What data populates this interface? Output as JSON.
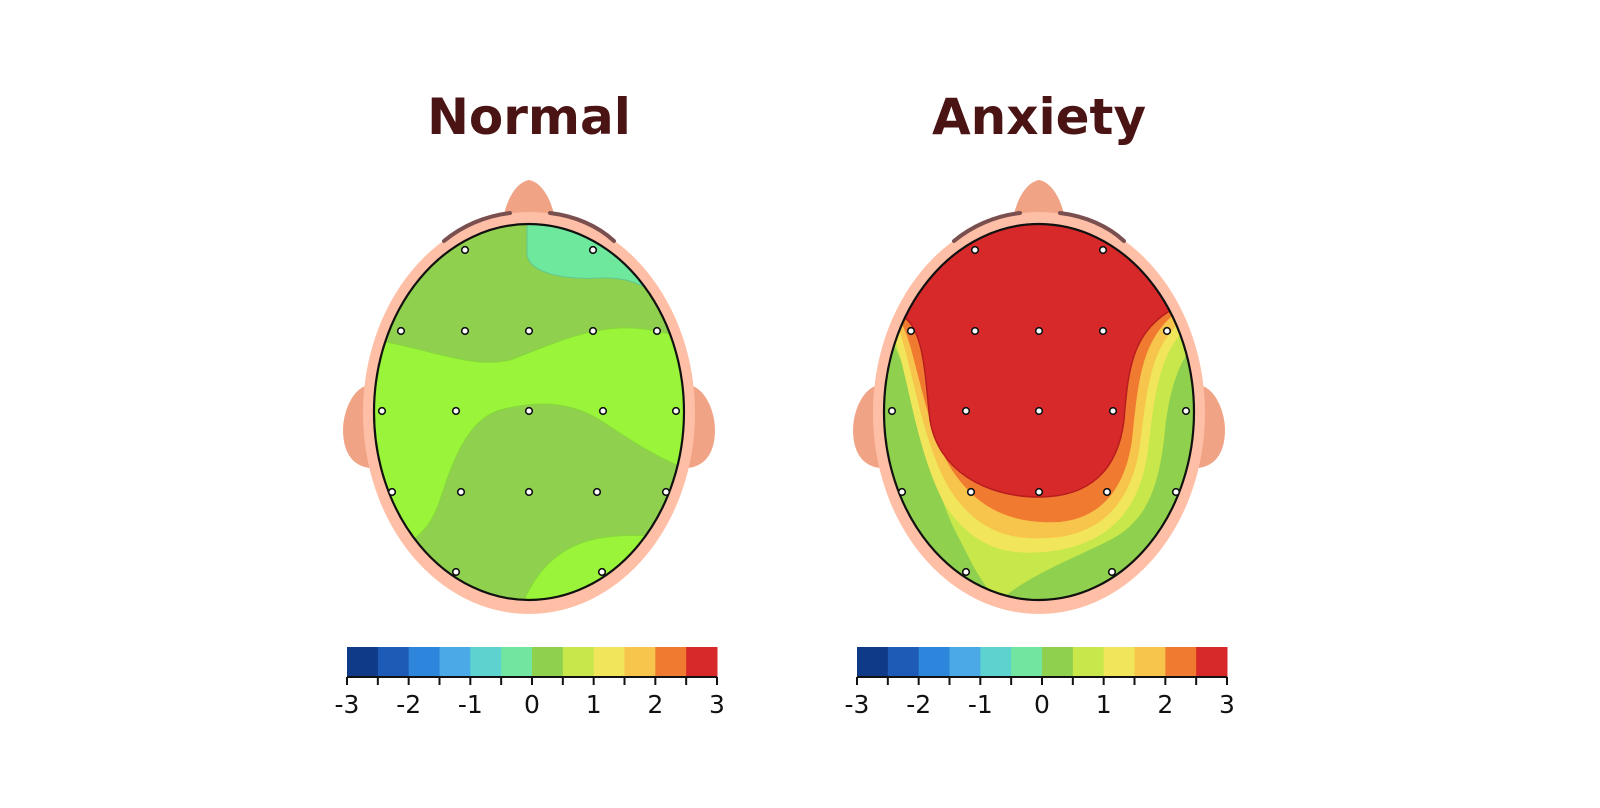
{
  "panels": [
    {
      "title": "Normal",
      "pattern": "normal"
    },
    {
      "title": "Anxiety",
      "pattern": "anxiety"
    }
  ],
  "colorbar": {
    "min": -3,
    "max": 3,
    "tick_labels": [
      "-3",
      "-2",
      "-1",
      "0",
      "1",
      "2",
      "3"
    ],
    "colors": [
      "#0e3a88",
      "#1e5bb6",
      "#2e85dc",
      "#4aa9e6",
      "#5dd3d0",
      "#72e6a0",
      "#8fd04e",
      "#c7e74b",
      "#f1e65b",
      "#f8c54c",
      "#f07a2f",
      "#d7292a"
    ]
  },
  "colors": {
    "skin": "#ffbfa6",
    "ear": "#f0a385",
    "hair": "#7a4f4f",
    "title": "#4a1414",
    "normal_lime": "#9af53a",
    "normal_mint": "#6ee89d"
  }
}
